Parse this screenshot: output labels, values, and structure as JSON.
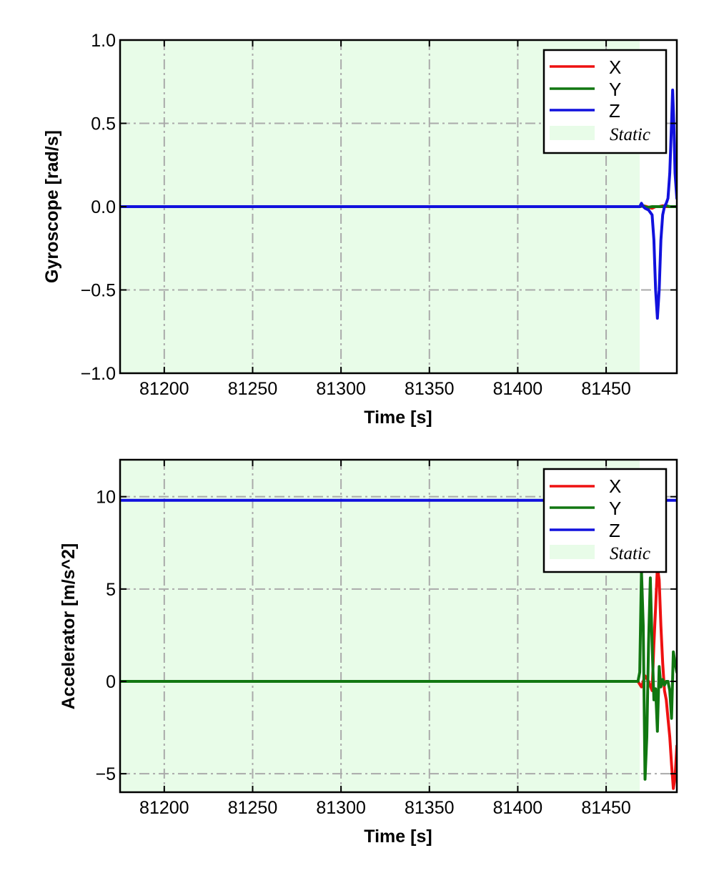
{
  "chart_data": [
    {
      "type": "line",
      "xlabel": "Time [s]",
      "ylabel": "Gyroscope [rad/s]",
      "xlim": [
        81175,
        81490
      ],
      "ylim": [
        -1.0,
        1.0
      ],
      "x_ticks": [
        81200,
        81250,
        81300,
        81350,
        81400,
        81450
      ],
      "y_ticks": [
        -1.0,
        -0.5,
        0.0,
        0.5,
        1.0
      ],
      "y_tick_labels": [
        "−1.0",
        "−0.5",
        "0.0",
        "0.5",
        "1.0"
      ],
      "grid": true,
      "legend_position": "top-right",
      "static_span": [
        81175,
        81469
      ],
      "static_label": "Static",
      "static_color": "#e8fce8",
      "series": [
        {
          "name": "X",
          "color": "#ee1111",
          "x": [
            81175,
            81469,
            81471,
            81473,
            81476,
            81478,
            81480,
            81482,
            81484,
            81486,
            81488,
            81490
          ],
          "y": [
            0.0,
            0.0,
            0.005,
            0.0,
            -0.01,
            0.0,
            0.0,
            0.005,
            0.0,
            0.0,
            0.0,
            0.0
          ]
        },
        {
          "name": "Y",
          "color": "#117711",
          "x": [
            81175,
            81469,
            81471,
            81473,
            81476,
            81478,
            81480,
            81482,
            81484,
            81486,
            81488,
            81490
          ],
          "y": [
            0.0,
            0.0,
            0.005,
            -0.005,
            0.0,
            0.0,
            0.0,
            0.0,
            0.005,
            0.0,
            0.0,
            0.0
          ]
        },
        {
          "name": "Z",
          "color": "#1111dd",
          "x": [
            81175,
            81469,
            81470,
            81471,
            81472,
            81474,
            81476,
            81477,
            81478,
            81479,
            81480,
            81481,
            81482,
            81483,
            81484,
            81485,
            81486,
            81487,
            81487.6,
            81488.3,
            81489,
            81490
          ],
          "y": [
            0.0,
            0.0,
            0.02,
            0.0,
            -0.01,
            -0.02,
            -0.05,
            -0.2,
            -0.5,
            -0.67,
            -0.5,
            -0.2,
            -0.05,
            0.0,
            0.02,
            0.05,
            0.2,
            0.5,
            0.7,
            0.5,
            0.2,
            0.05
          ]
        }
      ]
    },
    {
      "type": "line",
      "xlabel": "Time [s]",
      "ylabel": "Accelerator [m/s^2]",
      "xlim": [
        81175,
        81490
      ],
      "ylim": [
        -6.0,
        12.0
      ],
      "x_ticks": [
        81200,
        81250,
        81300,
        81350,
        81400,
        81450
      ],
      "y_ticks": [
        -5,
        0,
        5,
        10
      ],
      "y_tick_labels": [
        "−5",
        "0",
        "5",
        "10"
      ],
      "grid": true,
      "legend_position": "top-right",
      "static_span": [
        81175,
        81469
      ],
      "static_label": "Static",
      "static_color": "#e8fce8",
      "series": [
        {
          "name": "X",
          "color": "#ee1111",
          "x": [
            81175,
            81468,
            81470,
            81472,
            81474,
            81476,
            81477,
            81478,
            81479,
            81480,
            81481,
            81482,
            81483,
            81484,
            81485,
            81486,
            81487,
            81488,
            81489,
            81490
          ],
          "y": [
            0.0,
            0.0,
            -0.3,
            0.3,
            0.0,
            -0.5,
            2.0,
            4.0,
            6.2,
            5.5,
            3.0,
            1.0,
            -0.5,
            -1.0,
            -2.0,
            -3.0,
            -4.5,
            -5.8,
            -5.2,
            -3.5
          ]
        },
        {
          "name": "Y",
          "color": "#117711",
          "x": [
            81175,
            81468,
            81469,
            81470,
            81471,
            81472,
            81473,
            81474,
            81475,
            81476,
            81477,
            81478,
            81479,
            81480,
            81481,
            81482,
            81483,
            81484,
            81485,
            81486,
            81487,
            81488,
            81489,
            81490
          ],
          "y": [
            0.0,
            0.0,
            0.5,
            6.0,
            3.0,
            -5.3,
            -3.0,
            2.0,
            5.6,
            2.0,
            -1.0,
            -0.4,
            -2.7,
            0.8,
            -0.3,
            0.1,
            -0.2,
            0.0,
            0.0,
            -0.5,
            -2.0,
            1.6,
            1.0,
            0.5
          ]
        },
        {
          "name": "Z",
          "color": "#1111dd",
          "x": [
            81175,
            81490
          ],
          "y": [
            9.8,
            9.8
          ]
        }
      ]
    }
  ]
}
